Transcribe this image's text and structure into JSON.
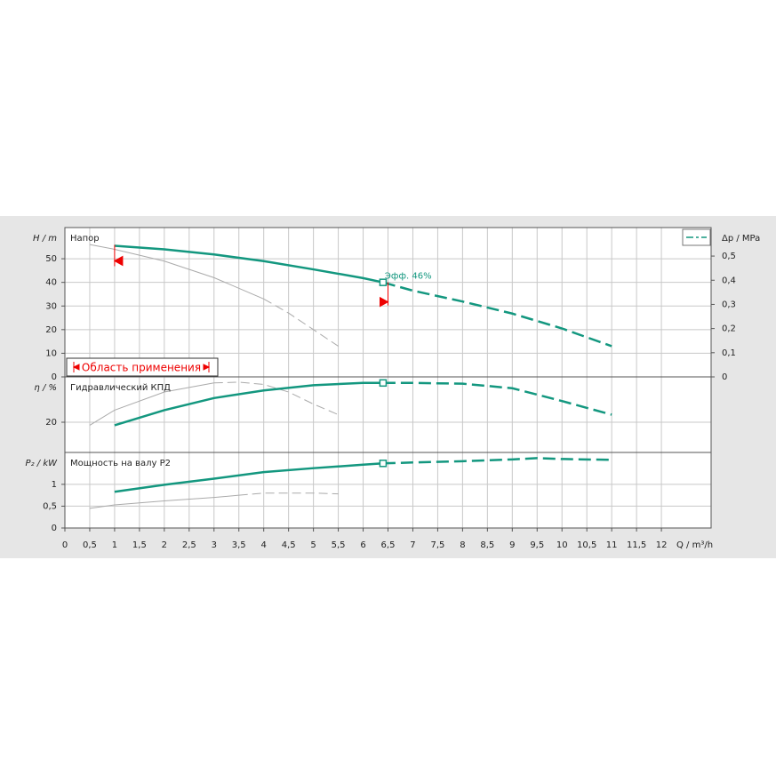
{
  "chart_data": [
    {
      "type": "line",
      "title": "Напор",
      "ylabel": "H / m",
      "y2label": "Δp / MPa",
      "annotation": "Эфф.  46%",
      "range_label": "Область применения",
      "xlim": [
        0,
        13
      ],
      "ylim": [
        0,
        63.2
      ],
      "yticks": [
        0,
        10,
        20,
        30,
        40,
        50
      ],
      "y2lim": [
        0,
        0.618
      ],
      "y2ticks": [
        0,
        {
          "value": 0.1,
          "label": "0,1"
        },
        {
          "value": 0.2,
          "label": "0,2"
        },
        {
          "value": 0.3,
          "label": "0,3"
        },
        {
          "value": 0.4,
          "label": "0,4"
        },
        {
          "value": 0.5,
          "label": "0,5"
        }
      ],
      "grid": true,
      "application_range": [
        1,
        6.5
      ],
      "operating_point": {
        "x": 6.4,
        "y": 40
      },
      "series": [
        {
          "color": "#aaaaaa",
          "dash": false,
          "x": [
            0.5,
            1,
            2,
            3,
            4
          ],
          "values": [
            56,
            54,
            49,
            42,
            33
          ]
        },
        {
          "color": "#aaaaaa",
          "dash": true,
          "x": [
            4,
            4.5,
            5,
            5.5
          ],
          "values": [
            33,
            27,
            20,
            13
          ]
        },
        {
          "color": "#13977f",
          "dash": false,
          "x": [
            1,
            2,
            3,
            4,
            5,
            6,
            6.4
          ],
          "values": [
            55.5,
            54,
            51.8,
            49,
            45.5,
            41.8,
            40
          ]
        },
        {
          "color": "#13977f",
          "dash": true,
          "x": [
            6.4,
            7,
            8,
            9,
            10,
            11
          ],
          "values": [
            40,
            36.5,
            31.9,
            26.8,
            20.5,
            13
          ]
        }
      ]
    },
    {
      "type": "line",
      "title": "Гидравлический КПД",
      "ylabel": "η / %",
      "xlim": [
        0,
        13
      ],
      "ylim": [
        0,
        50
      ],
      "yticks": [
        20
      ],
      "grid": true,
      "operating_point": {
        "x": 6.4,
        "y": 46
      },
      "series": [
        {
          "color": "#aaaaaa",
          "dash": false,
          "x": [
            0.5,
            1,
            2,
            3
          ],
          "values": [
            18,
            28,
            40,
            46
          ]
        },
        {
          "color": "#aaaaaa",
          "dash": true,
          "x": [
            3,
            3.5,
            4,
            4.5,
            5,
            5.5
          ],
          "values": [
            46,
            46.5,
            45,
            40,
            32,
            25
          ]
        },
        {
          "color": "#13977f",
          "dash": false,
          "x": [
            1,
            2,
            3,
            4,
            5,
            6,
            6.4
          ],
          "values": [
            18,
            28,
            36,
            41,
            44.5,
            46,
            46
          ]
        },
        {
          "color": "#13977f",
          "dash": true,
          "x": [
            6.4,
            7,
            8,
            9,
            10,
            11
          ],
          "values": [
            46,
            46,
            45.5,
            42.5,
            34,
            25
          ]
        }
      ]
    },
    {
      "type": "line",
      "title": "Мощность на валу P2",
      "ylabel": "P₂ / kW",
      "xlabel": "Q / m³/h",
      "xlim": [
        0,
        13
      ],
      "ylim": [
        0,
        1.73
      ],
      "yticks": [
        0,
        {
          "value": 0.5,
          "label": "0,5"
        },
        1
      ],
      "grid": true,
      "xticks": [
        0,
        {
          "value": 0.5,
          "label": "0,5"
        },
        1,
        {
          "value": 1.5,
          "label": "1,5"
        },
        2,
        {
          "value": 2.5,
          "label": "2,5"
        },
        3,
        {
          "value": 3.5,
          "label": "3,5"
        },
        4,
        {
          "value": 4.5,
          "label": "4,5"
        },
        5,
        {
          "value": 5.5,
          "label": "5,5"
        },
        6,
        {
          "value": 6.5,
          "label": "6,5"
        },
        7,
        {
          "value": 7.5,
          "label": "7,5"
        },
        8,
        {
          "value": 8.5,
          "label": "8,5"
        },
        9,
        {
          "value": 9.5,
          "label": "9,5"
        },
        10,
        {
          "value": 10.5,
          "label": "10,5"
        },
        11,
        {
          "value": 11.5,
          "label": "11,5"
        },
        12
      ],
      "operating_point": {
        "x": 6.4,
        "y": 1.48
      },
      "series": [
        {
          "color": "#aaaaaa",
          "dash": false,
          "x": [
            0.5,
            1,
            2,
            3,
            3.5
          ],
          "values": [
            0.45,
            0.53,
            0.62,
            0.7,
            0.75
          ]
        },
        {
          "color": "#aaaaaa",
          "dash": true,
          "x": [
            3.5,
            4,
            5,
            5.5
          ],
          "values": [
            0.75,
            0.8,
            0.8,
            0.78
          ]
        },
        {
          "color": "#13977f",
          "dash": false,
          "x": [
            1,
            2,
            3,
            4,
            5,
            6,
            6.4
          ],
          "values": [
            0.83,
            0.99,
            1.13,
            1.28,
            1.37,
            1.45,
            1.48
          ]
        },
        {
          "color": "#13977f",
          "dash": true,
          "x": [
            6.4,
            7,
            8,
            9,
            9.5,
            10,
            11
          ],
          "values": [
            1.48,
            1.5,
            1.53,
            1.57,
            1.6,
            1.58,
            1.56
          ]
        }
      ]
    }
  ]
}
